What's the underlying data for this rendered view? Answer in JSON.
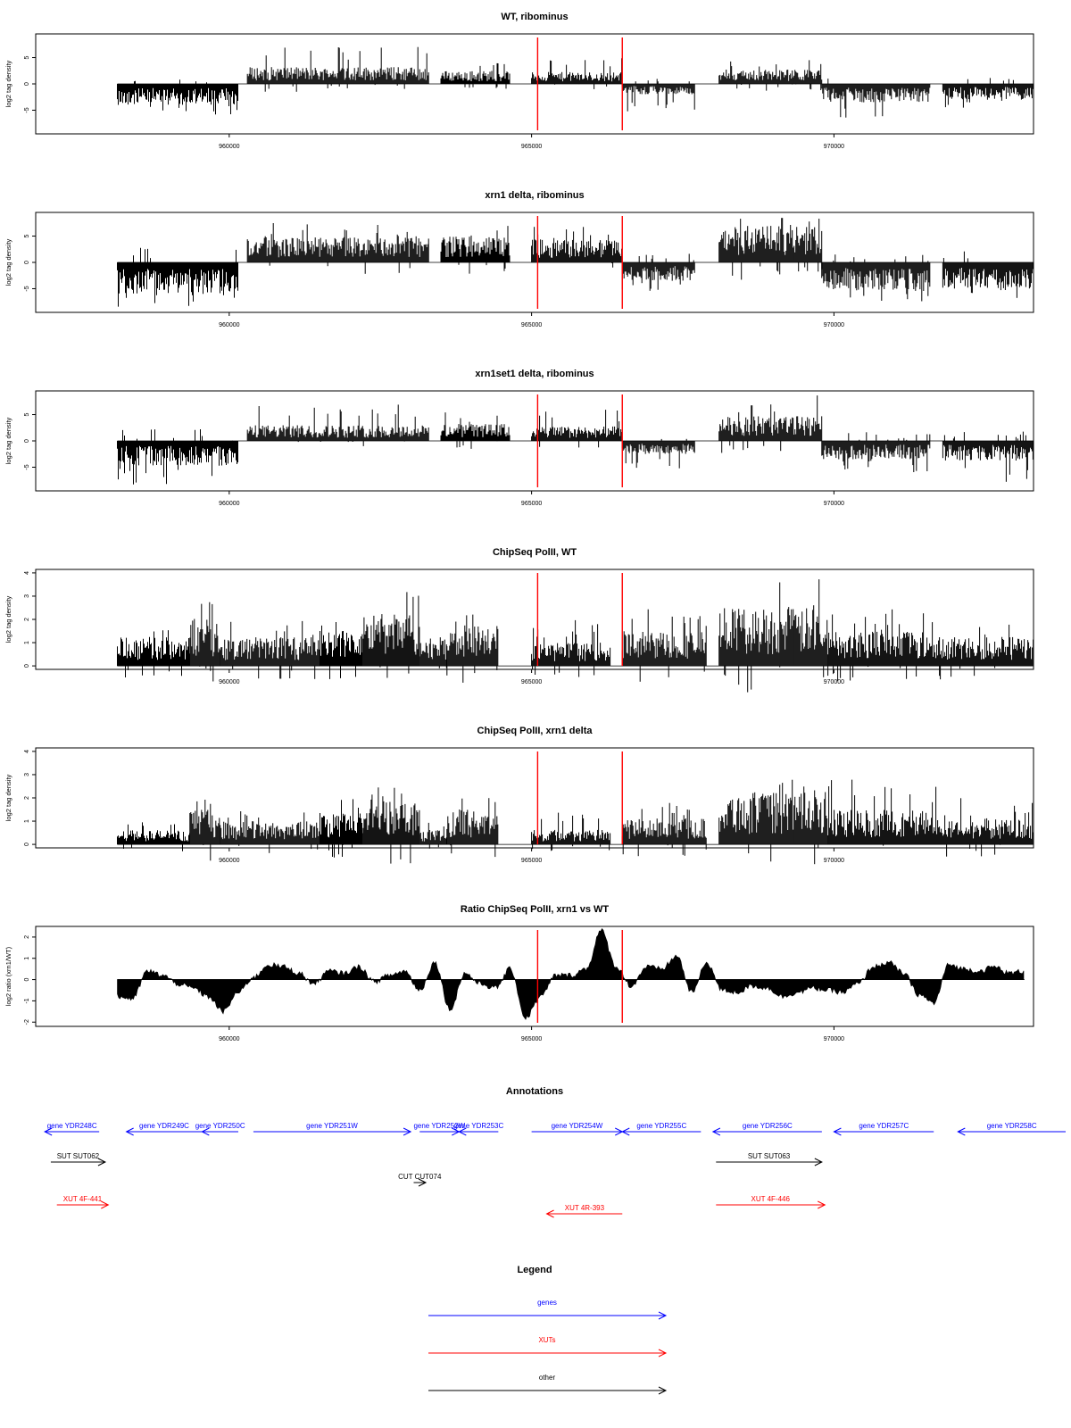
{
  "colors": {
    "gene": "#0000ff",
    "xut": "#ff0000",
    "other": "#000000",
    "marker": "#ff0000",
    "bars": "#000000"
  },
  "markers": [
    965100,
    966500
  ],
  "chart_data": [
    {
      "type": "bar",
      "title": "WT, ribominus",
      "ylabel": "log2 tag density",
      "xlim": [
        956800,
        973300
      ],
      "ylim": [
        -9.5,
        9.5
      ],
      "yticks": [
        -5,
        0,
        5
      ],
      "xticks": [
        960000,
        965000,
        970000
      ],
      "segments": [
        {
          "x0": 958150,
          "x1": 960150,
          "sign": -1,
          "amp": 3.2,
          "spike": 6.0
        },
        {
          "x0": 960300,
          "x1": 963300,
          "sign": 1,
          "amp": 2.6,
          "spike": 7.2
        },
        {
          "x0": 963500,
          "x1": 964650,
          "sign": 1,
          "amp": 2.0,
          "spike": 4.0
        },
        {
          "x0": 965000,
          "x1": 966500,
          "sign": 1,
          "amp": 1.8,
          "spike": 5.0
        },
        {
          "x0": 966500,
          "x1": 967700,
          "sign": -1,
          "amp": 1.6,
          "spike": 5.5
        },
        {
          "x0": 968100,
          "x1": 969800,
          "sign": 1,
          "amp": 2.2,
          "spike": 5.0
        },
        {
          "x0": 969800,
          "x1": 971600,
          "sign": -1,
          "amp": 2.8,
          "spike": 6.5
        },
        {
          "x0": 971800,
          "x1": 973300,
          "sign": -1,
          "amp": 2.4,
          "spike": 5.0
        }
      ]
    },
    {
      "type": "bar",
      "title": "xrn1 delta, ribominus",
      "ylabel": "log2 tag density",
      "xlim": [
        956800,
        973300
      ],
      "ylim": [
        -9.5,
        9.5
      ],
      "yticks": [
        -5,
        0,
        5
      ],
      "xticks": [
        960000,
        965000,
        970000
      ],
      "segments": [
        {
          "x0": 958150,
          "x1": 960150,
          "sign": -1,
          "amp": 5.0,
          "spike": 8.5
        },
        {
          "x0": 960300,
          "x1": 963300,
          "sign": 1,
          "amp": 3.8,
          "spike": 7.5
        },
        {
          "x0": 963500,
          "x1": 964650,
          "sign": 1,
          "amp": 4.0,
          "spike": 7.0
        },
        {
          "x0": 965000,
          "x1": 966500,
          "sign": 1,
          "amp": 3.5,
          "spike": 7.0
        },
        {
          "x0": 966500,
          "x1": 967700,
          "sign": -1,
          "amp": 2.8,
          "spike": 5.5
        },
        {
          "x0": 968100,
          "x1": 969800,
          "sign": 1,
          "amp": 5.5,
          "spike": 8.5
        },
        {
          "x0": 969800,
          "x1": 971600,
          "sign": -1,
          "amp": 4.2,
          "spike": 7.5
        },
        {
          "x0": 971800,
          "x1": 973300,
          "sign": -1,
          "amp": 4.0,
          "spike": 7.5
        }
      ]
    },
    {
      "type": "bar",
      "title": "xrn1set1 delta, ribominus",
      "ylabel": "log2 tag density",
      "xlim": [
        956800,
        973300
      ],
      "ylim": [
        -9.5,
        9.5
      ],
      "yticks": [
        -5,
        0,
        5
      ],
      "xticks": [
        960000,
        965000,
        970000
      ],
      "segments": [
        {
          "x0": 958150,
          "x1": 960150,
          "sign": -1,
          "amp": 3.8,
          "spike": 8.5
        },
        {
          "x0": 960300,
          "x1": 963300,
          "sign": 1,
          "amp": 2.4,
          "spike": 7.5
        },
        {
          "x0": 963500,
          "x1": 964650,
          "sign": 1,
          "amp": 2.6,
          "spike": 5.5
        },
        {
          "x0": 965000,
          "x1": 966500,
          "sign": 1,
          "amp": 2.2,
          "spike": 6.0
        },
        {
          "x0": 966500,
          "x1": 967700,
          "sign": -1,
          "amp": 2.0,
          "spike": 5.5
        },
        {
          "x0": 968100,
          "x1": 969800,
          "sign": 1,
          "amp": 3.8,
          "spike": 9.0
        },
        {
          "x0": 969800,
          "x1": 971600,
          "sign": -1,
          "amp": 2.8,
          "spike": 6.0
        },
        {
          "x0": 971800,
          "x1": 973300,
          "sign": -1,
          "amp": 3.0,
          "spike": 8.0
        }
      ]
    },
    {
      "type": "bar",
      "title": "ChipSeq PolII, WT",
      "ylabel": "log2 tag density",
      "xlim": [
        956800,
        973300
      ],
      "ylim": [
        -0.15,
        4.15
      ],
      "yticks": [
        0,
        1,
        2,
        3,
        4
      ],
      "xticks": [
        960000,
        965000,
        970000
      ],
      "segments": [
        {
          "x0": 958150,
          "x1": 959350,
          "sign": 1,
          "amp": 1.0,
          "spike": 1.6
        },
        {
          "x0": 959350,
          "x1": 959850,
          "sign": 1,
          "amp": 1.6,
          "spike": 3.0
        },
        {
          "x0": 959850,
          "x1": 961500,
          "sign": 1,
          "amp": 1.0,
          "spike": 2.0
        },
        {
          "x0": 961500,
          "x1": 962200,
          "sign": 1,
          "amp": 1.2,
          "spike": 2.0
        },
        {
          "x0": 962200,
          "x1": 963150,
          "sign": 1,
          "amp": 1.8,
          "spike": 3.5
        },
        {
          "x0": 963150,
          "x1": 963600,
          "sign": 1,
          "amp": 1.0,
          "spike": 1.5
        },
        {
          "x0": 963600,
          "x1": 964450,
          "sign": 1,
          "amp": 1.4,
          "spike": 2.5
        },
        {
          "x0": 965000,
          "x1": 966300,
          "sign": 1,
          "amp": 0.8,
          "spike": 2.0
        },
        {
          "x0": 966500,
          "x1": 967900,
          "sign": 1,
          "amp": 1.2,
          "spike": 2.5
        },
        {
          "x0": 968100,
          "x1": 969900,
          "sign": 1,
          "amp": 2.0,
          "spike": 3.9
        },
        {
          "x0": 969900,
          "x1": 971700,
          "sign": 1,
          "amp": 1.3,
          "spike": 2.5
        },
        {
          "x0": 971700,
          "x1": 973300,
          "sign": 1,
          "amp": 1.0,
          "spike": 2.0
        }
      ]
    },
    {
      "type": "bar",
      "title": "ChipSeq PolII, xrn1 delta",
      "ylabel": "log2 tag density",
      "xlim": [
        956800,
        973300
      ],
      "ylim": [
        -0.15,
        4.15
      ],
      "yticks": [
        0,
        1,
        2,
        3,
        4
      ],
      "xticks": [
        960000,
        965000,
        970000
      ],
      "segments": [
        {
          "x0": 958150,
          "x1": 959350,
          "sign": 1,
          "amp": 0.5,
          "spike": 1.0
        },
        {
          "x0": 959350,
          "x1": 959850,
          "sign": 1,
          "amp": 1.2,
          "spike": 2.2
        },
        {
          "x0": 959850,
          "x1": 961500,
          "sign": 1,
          "amp": 0.8,
          "spike": 1.8
        },
        {
          "x0": 961500,
          "x1": 962200,
          "sign": 1,
          "amp": 1.1,
          "spike": 2.0
        },
        {
          "x0": 962200,
          "x1": 963150,
          "sign": 1,
          "amp": 1.6,
          "spike": 2.6
        },
        {
          "x0": 963150,
          "x1": 963600,
          "sign": 1,
          "amp": 0.5,
          "spike": 1.0
        },
        {
          "x0": 963600,
          "x1": 964450,
          "sign": 1,
          "amp": 1.2,
          "spike": 2.0
        },
        {
          "x0": 965000,
          "x1": 966300,
          "sign": 1,
          "amp": 0.5,
          "spike": 1.6
        },
        {
          "x0": 966500,
          "x1": 967900,
          "sign": 1,
          "amp": 0.9,
          "spike": 1.8
        },
        {
          "x0": 968100,
          "x1": 969900,
          "sign": 1,
          "amp": 1.8,
          "spike": 3.0
        },
        {
          "x0": 969900,
          "x1": 971700,
          "sign": 1,
          "amp": 1.2,
          "spike": 2.8
        },
        {
          "x0": 971700,
          "x1": 973300,
          "sign": 1,
          "amp": 0.9,
          "spike": 2.0
        }
      ]
    },
    {
      "type": "area",
      "title": "Ratio ChipSeq PolII, xrn1 vs WT",
      "ylabel": "log2 ratio (xrn1/WT)",
      "xlim": [
        956800,
        973300
      ],
      "ylim": [
        -2.2,
        2.5
      ],
      "yticks": [
        -2,
        -1,
        0,
        1,
        2
      ],
      "xticks": [
        960000,
        965000,
        970000
      ],
      "x": [
        958150,
        958400,
        958650,
        958900,
        959150,
        959400,
        959650,
        959900,
        960150,
        960400,
        960650,
        960900,
        961150,
        961400,
        961650,
        961900,
        962150,
        962400,
        962650,
        962900,
        963150,
        963400,
        963650,
        963900,
        964150,
        964400,
        964650,
        964900,
        965150,
        965400,
        965650,
        965900,
        966150,
        966400,
        966650,
        966900,
        967150,
        967400,
        967650,
        967900,
        968150,
        968400,
        968650,
        968900,
        969150,
        969400,
        969650,
        969900,
        970150,
        970400,
        970650,
        970900,
        971150,
        971400,
        971650,
        971900,
        972150,
        972400,
        972650,
        972900,
        973150
      ],
      "y": [
        -0.8,
        -0.9,
        0.4,
        0.2,
        -0.2,
        -0.4,
        -0.8,
        -1.5,
        -0.6,
        0.1,
        0.7,
        0.6,
        0.3,
        -0.2,
        0.4,
        0.3,
        0.6,
        -0.1,
        0.2,
        0.4,
        -0.5,
        0.8,
        -1.4,
        0.3,
        -0.2,
        -0.4,
        0.5,
        -1.8,
        -0.8,
        0.2,
        0.2,
        0.5,
        2.3,
        0.6,
        -0.3,
        0.6,
        0.5,
        1.1,
        -0.6,
        0.8,
        -0.5,
        -0.6,
        -0.3,
        -0.4,
        -0.8,
        -0.6,
        -0.4,
        -0.5,
        -0.6,
        -0.2,
        0.6,
        0.8,
        0.3,
        -0.7,
        -1.1,
        0.7,
        0.5,
        0.4,
        0.6,
        0.3,
        0.4
      ]
    }
  ],
  "annotations": {
    "title": "Annotations",
    "xlim": [
      956800,
      973300
    ],
    "items": [
      {
        "label": "gene YDR248C",
        "kind": "gene",
        "x0": 956950,
        "x1": 957850,
        "dir": -1,
        "row": 0
      },
      {
        "label": "gene YDR249C",
        "kind": "gene",
        "x0": 958300,
        "x1": 959550,
        "dir": -1,
        "row": 0
      },
      {
        "label": "gene YDR250C",
        "kind": "gene",
        "x0": 959550,
        "x1": 960150,
        "dir": -1,
        "row": 0
      },
      {
        "label": "gene YDR251W",
        "kind": "gene",
        "x0": 960400,
        "x1": 963000,
        "dir": 1,
        "row": 0
      },
      {
        "label": "gene YDR252W",
        "kind": "gene",
        "x0": 963150,
        "x1": 963800,
        "dir": 1,
        "row": 0
      },
      {
        "label": "gene YDR253C",
        "kind": "gene",
        "x0": 963800,
        "x1": 964450,
        "dir": -1,
        "row": 0
      },
      {
        "label": "gene YDR254W",
        "kind": "gene",
        "x0": 965000,
        "x1": 966500,
        "dir": 1,
        "row": 0
      },
      {
        "label": "gene YDR255C",
        "kind": "gene",
        "x0": 966500,
        "x1": 967800,
        "dir": -1,
        "row": 0
      },
      {
        "label": "gene YDR256C",
        "kind": "gene",
        "x0": 968000,
        "x1": 969800,
        "dir": -1,
        "row": 0
      },
      {
        "label": "gene YDR257C",
        "kind": "gene",
        "x0": 970000,
        "x1": 971650,
        "dir": -1,
        "row": 0
      },
      {
        "label": "gene YDR258C",
        "kind": "gene",
        "x0": 972050,
        "x1": 974250,
        "dir": -1,
        "row": 0
      },
      {
        "label": "SUT SUT062",
        "kind": "other",
        "x0": 957050,
        "x1": 957950,
        "dir": 1,
        "row": 1
      },
      {
        "label": "SUT SUT063",
        "kind": "other",
        "x0": 968050,
        "x1": 969800,
        "dir": 1,
        "row": 1
      },
      {
        "label": "CUT CUT074",
        "kind": "other",
        "x0": 963050,
        "x1": 963250,
        "dir": 1,
        "row": 2
      },
      {
        "label": "XUT 4F-441",
        "kind": "xut",
        "x0": 957150,
        "x1": 958000,
        "dir": 1,
        "row": 3
      },
      {
        "label": "XUT 4R-393",
        "kind": "xut",
        "x0": 965250,
        "x1": 966500,
        "dir": -1,
        "row": 4
      },
      {
        "label": "XUT 4F-446",
        "kind": "xut",
        "x0": 968050,
        "x1": 969850,
        "dir": 1,
        "row": 3
      }
    ]
  },
  "legend": {
    "title": "Legend",
    "items": [
      {
        "label": "genes",
        "kind": "gene"
      },
      {
        "label": "XUTs",
        "kind": "xut"
      },
      {
        "label": "other",
        "kind": "other"
      }
    ]
  }
}
